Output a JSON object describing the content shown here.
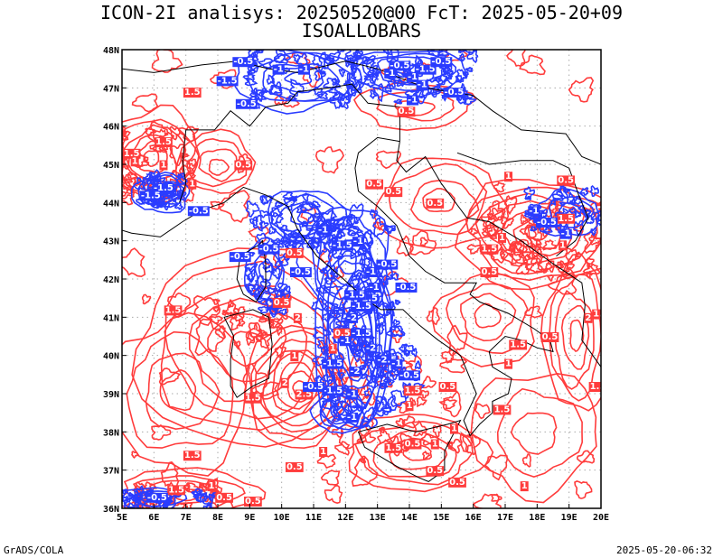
{
  "title_line1": "ICON-2I analisys: 20250520@00 FcT: 2025-05-20+09",
  "title_line2": "ISOALLOBARS",
  "footer_left": "GrADS/COLA",
  "footer_right": "2025-05-20-06:32",
  "map": {
    "lon_range": [
      5,
      20
    ],
    "lat_range": [
      36,
      48
    ],
    "lon_ticks": [
      "5E",
      "6E",
      "7E",
      "8E",
      "9E",
      "10E",
      "11E",
      "12E",
      "13E",
      "14E",
      "15E",
      "16E",
      "17E",
      "18E",
      "19E",
      "20E"
    ],
    "lat_ticks": [
      "36N",
      "37N",
      "38N",
      "39N",
      "40N",
      "41N",
      "42N",
      "43N",
      "44N",
      "45N",
      "46N",
      "47N",
      "48N"
    ],
    "colors": {
      "positive": "#ff3c3c",
      "negative": "#2a3cff",
      "coast": "#000000",
      "grid": "#aaaaaa"
    },
    "contour_labels": [
      {
        "text": "0.5",
        "lon": 8.2,
        "lat": 36.3,
        "sign": "pos"
      },
      {
        "text": "0.5",
        "lon": 8.8,
        "lat": 45.0,
        "sign": "pos"
      },
      {
        "text": "1.5",
        "lon": 5.3,
        "lat": 45.3,
        "sign": "pos"
      },
      {
        "text": "1",
        "lon": 6.3,
        "lat": 45.0,
        "sign": "pos"
      },
      {
        "text": "1",
        "lon": 7.2,
        "lat": 44.5,
        "sign": "pos"
      },
      {
        "text": "1",
        "lon": 5.4,
        "lat": 45.1,
        "sign": "pos"
      },
      {
        "text": "1.5",
        "lon": 6.3,
        "lat": 45.6,
        "sign": "pos"
      },
      {
        "text": "0.5",
        "lon": 13.5,
        "lat": 44.3,
        "sign": "pos"
      },
      {
        "text": "1",
        "lon": 16.9,
        "lat": 43.1,
        "sign": "pos"
      },
      {
        "text": "1.5",
        "lon": 16.5,
        "lat": 42.8,
        "sign": "pos"
      },
      {
        "text": "0.5",
        "lon": 16.5,
        "lat": 42.2,
        "sign": "pos"
      },
      {
        "text": "1.5",
        "lon": 6.6,
        "lat": 41.2,
        "sign": "pos"
      },
      {
        "text": "2",
        "lon": 19.6,
        "lat": 41.0,
        "sign": "pos"
      },
      {
        "text": "1.5",
        "lon": 20.0,
        "lat": 41.1,
        "sign": "pos"
      },
      {
        "text": "1.5",
        "lon": 17.4,
        "lat": 40.3,
        "sign": "pos"
      },
      {
        "text": "0.5",
        "lon": 18.4,
        "lat": 40.5,
        "sign": "pos"
      },
      {
        "text": "1",
        "lon": 17.1,
        "lat": 39.8,
        "sign": "pos"
      },
      {
        "text": "1",
        "lon": 10.4,
        "lat": 40.0,
        "sign": "pos"
      },
      {
        "text": "1.5",
        "lon": 9.1,
        "lat": 38.9,
        "sign": "pos"
      },
      {
        "text": "2.5",
        "lon": 10.7,
        "lat": 39.0,
        "sign": "pos"
      },
      {
        "text": "2",
        "lon": 10.1,
        "lat": 39.3,
        "sign": "pos"
      },
      {
        "text": "1.5",
        "lon": 14.1,
        "lat": 39.1,
        "sign": "pos"
      },
      {
        "text": "1",
        "lon": 14.0,
        "lat": 38.7,
        "sign": "pos"
      },
      {
        "text": "0.5",
        "lon": 15.2,
        "lat": 39.2,
        "sign": "pos"
      },
      {
        "text": "1.5",
        "lon": 16.9,
        "lat": 38.6,
        "sign": "pos"
      },
      {
        "text": "1.5",
        "lon": 7.2,
        "lat": 37.4,
        "sign": "pos"
      },
      {
        "text": "0.5",
        "lon": 14.1,
        "lat": 37.7,
        "sign": "pos"
      },
      {
        "text": "1.5",
        "lon": 13.5,
        "lat": 37.6,
        "sign": "pos"
      },
      {
        "text": "1",
        "lon": 14.8,
        "lat": 37.7,
        "sign": "pos"
      },
      {
        "text": "0.5",
        "lon": 14.8,
        "lat": 37.0,
        "sign": "pos"
      },
      {
        "text": "1",
        "lon": 15.4,
        "lat": 38.1,
        "sign": "pos"
      },
      {
        "text": "0.5",
        "lon": 10.4,
        "lat": 37.1,
        "sign": "pos"
      },
      {
        "text": "1",
        "lon": 11.3,
        "lat": 37.5,
        "sign": "pos"
      },
      {
        "text": "1.5",
        "lon": 6.7,
        "lat": 36.5,
        "sign": "pos"
      },
      {
        "text": "0.5",
        "lon": 9.1,
        "lat": 36.2,
        "sign": "pos"
      },
      {
        "text": "1",
        "lon": 7.8,
        "lat": 36.6,
        "sign": "pos"
      },
      {
        "text": "0.5",
        "lon": 15.5,
        "lat": 36.7,
        "sign": "pos"
      },
      {
        "text": "1",
        "lon": 17.6,
        "lat": 36.6,
        "sign": "pos"
      },
      {
        "text": "1.5",
        "lon": 19.9,
        "lat": 39.2,
        "sign": "pos"
      },
      {
        "text": "0.5",
        "lon": 10.4,
        "lat": 42.7,
        "sign": "pos"
      },
      {
        "text": "2",
        "lon": 10.5,
        "lat": 41.0,
        "sign": "pos"
      },
      {
        "text": "0.5",
        "lon": 12.9,
        "lat": 44.5,
        "sign": "pos"
      },
      {
        "text": "0.5",
        "lon": 14.8,
        "lat": 44.0,
        "sign": "pos"
      },
      {
        "text": "1.5",
        "lon": 18.9,
        "lat": 43.6,
        "sign": "pos"
      },
      {
        "text": "0.5",
        "lon": 18.9,
        "lat": 44.6,
        "sign": "pos"
      },
      {
        "text": "1",
        "lon": 18.8,
        "lat": 42.9,
        "sign": "pos"
      },
      {
        "text": "0.5",
        "lon": 13.9,
        "lat": 46.4,
        "sign": "pos"
      },
      {
        "text": "1",
        "lon": 17.1,
        "lat": 44.7,
        "sign": "pos"
      },
      {
        "text": "1",
        "lon": 11.6,
        "lat": 40.2,
        "sign": "pos"
      },
      {
        "text": "0.5",
        "lon": 11.9,
        "lat": 40.6,
        "sign": "pos"
      },
      {
        "text": "1.5",
        "lon": 7.2,
        "lat": 46.9,
        "sign": "pos"
      },
      {
        "text": "0.5",
        "lon": 10.0,
        "lat": 41.4,
        "sign": "pos"
      },
      {
        "text": "-0.5",
        "lon": 8.8,
        "lat": 47.7,
        "sign": "neg"
      },
      {
        "text": "-1",
        "lon": 9.9,
        "lat": 47.5,
        "sign": "neg"
      },
      {
        "text": "-1",
        "lon": 10.7,
        "lat": 47.5,
        "sign": "neg"
      },
      {
        "text": "-0.5",
        "lon": 13.7,
        "lat": 47.6,
        "sign": "neg"
      },
      {
        "text": "-1.5",
        "lon": 14.5,
        "lat": 47.5,
        "sign": "neg"
      },
      {
        "text": "-1",
        "lon": 14.1,
        "lat": 47.3,
        "sign": "neg"
      },
      {
        "text": "-1",
        "lon": 14.4,
        "lat": 47.1,
        "sign": "neg"
      },
      {
        "text": "-0.5",
        "lon": 15.0,
        "lat": 47.7,
        "sign": "neg"
      },
      {
        "text": "-0.5",
        "lon": 15.4,
        "lat": 46.9,
        "sign": "neg"
      },
      {
        "text": "-1.5",
        "lon": 8.3,
        "lat": 47.2,
        "sign": "neg"
      },
      {
        "text": "-1",
        "lon": 13.4,
        "lat": 47.4,
        "sign": "neg"
      },
      {
        "text": "-0.5",
        "lon": 8.9,
        "lat": 46.6,
        "sign": "neg"
      },
      {
        "text": "-1.5",
        "lon": 6.3,
        "lat": 44.4,
        "sign": "neg"
      },
      {
        "text": "-1.5",
        "lon": 5.9,
        "lat": 44.2,
        "sign": "neg"
      },
      {
        "text": "-0.5",
        "lon": 7.4,
        "lat": 43.8,
        "sign": "neg"
      },
      {
        "text": "-0.5",
        "lon": 9.6,
        "lat": 42.8,
        "sign": "neg"
      },
      {
        "text": "-0.5",
        "lon": 10.6,
        "lat": 42.2,
        "sign": "neg"
      },
      {
        "text": "-1",
        "lon": 11.3,
        "lat": 43.3,
        "sign": "neg"
      },
      {
        "text": "-1.5",
        "lon": 11.9,
        "lat": 42.9,
        "sign": "neg"
      },
      {
        "text": "-1",
        "lon": 12.4,
        "lat": 43.0,
        "sign": "neg"
      },
      {
        "text": "-0.5",
        "lon": 13.9,
        "lat": 41.8,
        "sign": "neg"
      },
      {
        "text": "-1",
        "lon": 12.8,
        "lat": 42.2,
        "sign": "neg"
      },
      {
        "text": "-1.5",
        "lon": 12.7,
        "lat": 41.5,
        "sign": "neg"
      },
      {
        "text": "-1",
        "lon": 12.9,
        "lat": 41.8,
        "sign": "neg"
      },
      {
        "text": "-1.5",
        "lon": 12.3,
        "lat": 41.6,
        "sign": "neg"
      },
      {
        "text": "-2",
        "lon": 12.2,
        "lat": 41.0,
        "sign": "neg"
      },
      {
        "text": "-1.5",
        "lon": 12.5,
        "lat": 40.6,
        "sign": "neg"
      },
      {
        "text": "-1",
        "lon": 12.0,
        "lat": 40.4,
        "sign": "neg"
      },
      {
        "text": "-2",
        "lon": 12.8,
        "lat": 40.2,
        "sign": "neg"
      },
      {
        "text": "-2.5",
        "lon": 13.3,
        "lat": 39.9,
        "sign": "neg"
      },
      {
        "text": "-1.5",
        "lon": 11.6,
        "lat": 39.8,
        "sign": "neg"
      },
      {
        "text": "-2",
        "lon": 12.3,
        "lat": 39.6,
        "sign": "neg"
      },
      {
        "text": "-1.5",
        "lon": 11.6,
        "lat": 39.1,
        "sign": "neg"
      },
      {
        "text": "-1",
        "lon": 12.2,
        "lat": 38.4,
        "sign": "neg"
      },
      {
        "text": "-1",
        "lon": 12.2,
        "lat": 39.0,
        "sign": "neg"
      },
      {
        "text": "-1.5",
        "lon": 12.5,
        "lat": 41.3,
        "sign": "neg"
      },
      {
        "text": "-0.5",
        "lon": 11.0,
        "lat": 39.2,
        "sign": "neg"
      },
      {
        "text": "-0.5",
        "lon": 14.0,
        "lat": 39.5,
        "sign": "neg"
      },
      {
        "text": "-1",
        "lon": 13.6,
        "lat": 39.8,
        "sign": "neg"
      },
      {
        "text": "-0.5",
        "lon": 13.3,
        "lat": 42.4,
        "sign": "neg"
      },
      {
        "text": "-0.5",
        "lon": 18.3,
        "lat": 43.5,
        "sign": "neg"
      },
      {
        "text": "-1",
        "lon": 17.9,
        "lat": 43.8,
        "sign": "neg"
      },
      {
        "text": "-1",
        "lon": 18.9,
        "lat": 43.2,
        "sign": "neg"
      },
      {
        "text": "-0.5",
        "lon": 6.1,
        "lat": 36.3,
        "sign": "neg"
      },
      {
        "text": "-0.5",
        "lon": 8.7,
        "lat": 42.6,
        "sign": "neg"
      },
      {
        "text": "-1",
        "lon": 14.1,
        "lat": 46.7,
        "sign": "neg"
      }
    ]
  }
}
